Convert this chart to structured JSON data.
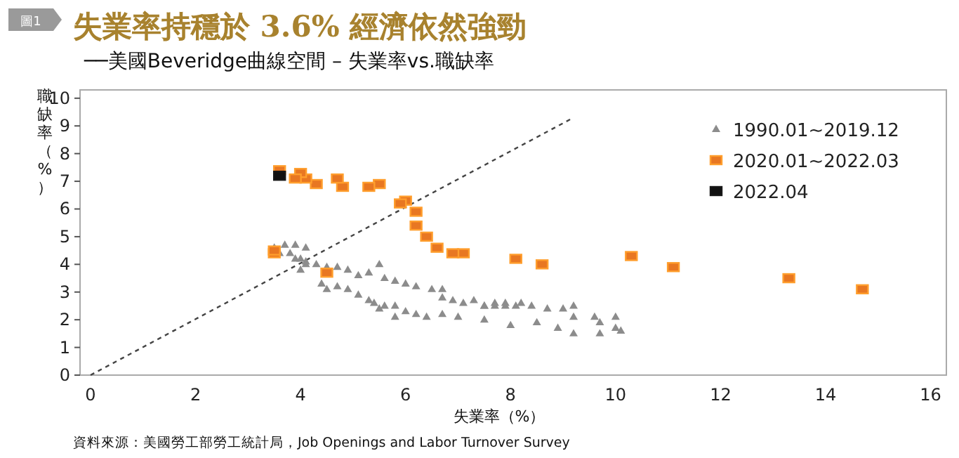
{
  "chart_data": {
    "type": "scatter",
    "title": "失業率持穩於 3.6% 經濟依然強勁",
    "subtitle": "──美國Beveridge曲線空間 – 失業率vs.職缺率",
    "xlabel": "失業率（%）",
    "ylabel": "職缺率（%）",
    "annotations": [
      "圖1",
      "資料來源：美國勞工部勞工統計局，Job Openings and Labor Turnover Survey"
    ],
    "xlim": [
      -0.2,
      16.3
    ],
    "ylim": [
      0,
      10.3
    ],
    "xticks": [
      0,
      2,
      4,
      6,
      8,
      10,
      12,
      14,
      16
    ],
    "yticks": [
      0,
      1,
      2,
      3,
      4,
      5,
      6,
      7,
      8,
      9,
      10
    ],
    "grid": false,
    "legend": "top right",
    "series": [
      {
        "type": "line",
        "color": "#444444",
        "line_style": "dashed",
        "marker": "none",
        "x": [
          0,
          9.2
        ],
        "values": [
          0,
          9.3
        ]
      },
      {
        "name": "1990.01~2019.12",
        "color": "#8c8c8c",
        "marker": "triangle",
        "x": [
          3.5,
          3.7,
          3.9,
          4.1,
          4.0,
          4.1,
          4.1,
          4.3,
          4.5,
          4.7,
          4.9,
          5.1,
          5.3,
          5.5,
          5.6,
          5.8,
          6.0,
          6.2,
          6.5,
          6.7,
          6.7,
          6.9,
          7.1,
          7.3,
          7.5,
          7.7,
          7.9,
          8.1,
          8.0,
          4.4,
          4.5,
          4.7,
          4.9,
          5.1,
          5.3,
          5.4,
          5.6,
          5.8,
          6.0,
          6.2,
          6.4,
          3.9,
          4.0,
          5.5,
          5.8,
          7.5,
          7.7,
          7.9,
          8.2,
          8.4,
          8.7,
          9.0,
          9.2,
          9.2,
          9.6,
          9.7,
          10.0,
          10.1,
          10.0,
          8.5,
          8.9,
          9.2,
          7.0,
          6.7,
          7.5,
          9.7,
          3.6,
          3.8
        ],
        "values": [
          4.6,
          4.7,
          4.7,
          4.6,
          4.2,
          4.1,
          4.0,
          4.0,
          3.9,
          3.9,
          3.8,
          3.6,
          3.7,
          4.0,
          3.5,
          3.4,
          3.3,
          3.2,
          3.1,
          3.1,
          2.8,
          2.7,
          2.6,
          2.7,
          2.5,
          2.6,
          2.5,
          2.5,
          1.8,
          3.3,
          3.1,
          3.2,
          3.1,
          2.9,
          2.7,
          2.6,
          2.5,
          2.5,
          2.3,
          2.2,
          2.1,
          4.2,
          3.8,
          2.4,
          2.1,
          2.5,
          2.5,
          2.6,
          2.6,
          2.5,
          2.4,
          2.4,
          2.5,
          2.1,
          2.1,
          1.9,
          2.1,
          1.6,
          1.7,
          1.9,
          1.7,
          1.5,
          2.1,
          2.2,
          2.0,
          1.5,
          4.4,
          4.4
        ]
      },
      {
        "name": "2020.01~2022.03",
        "color": "#e87722",
        "marker": "square",
        "x": [
          3.5,
          3.5,
          4.5,
          14.7,
          13.3,
          11.1,
          10.3,
          8.6,
          8.1,
          7.1,
          6.9,
          6.6,
          6.4,
          6.2,
          6.2,
          6.0,
          5.9,
          5.5,
          5.3,
          4.8,
          4.7,
          4.3,
          4.1,
          4.0,
          3.9,
          3.6
        ],
        "values": [
          4.4,
          4.5,
          3.7,
          3.1,
          3.5,
          3.9,
          4.3,
          4.0,
          4.2,
          4.4,
          4.4,
          4.6,
          5.0,
          5.4,
          5.9,
          6.3,
          6.2,
          6.9,
          6.8,
          6.8,
          7.1,
          6.9,
          7.1,
          7.3,
          7.1,
          7.4
        ]
      },
      {
        "name": "2022.04",
        "color": "#111111",
        "marker": "square",
        "x": [
          3.6
        ],
        "values": [
          7.2
        ]
      }
    ]
  }
}
